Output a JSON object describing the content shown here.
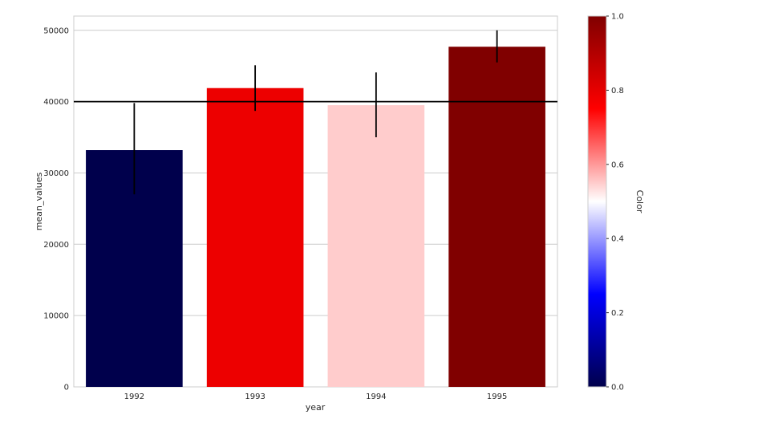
{
  "chart_data": {
    "type": "bar",
    "title": "",
    "xlabel": "year",
    "ylabel": "mean_values",
    "categories": [
      "1992",
      "1993",
      "1994",
      "1995"
    ],
    "values": [
      33200,
      41900,
      39500,
      47700
    ],
    "error_bars": [
      {
        "low": 27000,
        "high": 39800
      },
      {
        "low": 38700,
        "high": 45100
      },
      {
        "low": 35000,
        "high": 44100
      },
      {
        "low": 45500,
        "high": 50000
      }
    ],
    "bar_colors": [
      "#00004c",
      "#ed0000",
      "#ffcccc",
      "#800000"
    ],
    "reference_line": {
      "y": 40000,
      "color": "#000000"
    },
    "ylim": [
      0,
      52000
    ],
    "yticks": [
      0,
      10000,
      20000,
      30000,
      40000,
      50000
    ],
    "ytick_labels": [
      "0",
      "10000",
      "20000",
      "30000",
      "40000",
      "50000"
    ],
    "grid": true,
    "colorbar": {
      "label": "Color",
      "colormap": "seismic",
      "range": [
        0.0,
        1.0
      ],
      "ticks": [
        0.0,
        0.2,
        0.4,
        0.6,
        0.8,
        1.0
      ],
      "tick_labels": [
        "0.0",
        "0.2",
        "0.4",
        "0.6",
        "0.8",
        "1.0"
      ],
      "stops": [
        "#00004c",
        "#0000ff",
        "#ffffff",
        "#ff0000",
        "#800000"
      ]
    }
  }
}
